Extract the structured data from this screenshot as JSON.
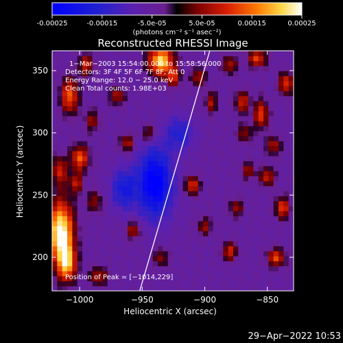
{
  "chart_data": {
    "type": "heatmap",
    "title": "Reconstructed RHESSI Image",
    "xlabel": "Heliocentric X (arcsec)",
    "ylabel": "Heliocentric Y (arcsec)",
    "xlim": [
      -1022,
      -829
    ],
    "ylim": [
      173,
      366
    ],
    "x_ticks": [
      -1000,
      -950,
      -900,
      -850
    ],
    "x_tick_labels": [
      "−1000",
      "−950",
      "−900",
      "−850"
    ],
    "y_ticks": [
      200,
      250,
      300,
      350
    ],
    "y_tick_labels": [
      "200",
      "250",
      "300",
      "350"
    ],
    "colorbar": {
      "range": [
        -0.00025,
        0.00025
      ],
      "ticks": [
        -0.00025,
        -0.00015,
        -5e-05,
        5e-05,
        0.00015,
        0.00025
      ],
      "tick_labels": [
        "-0.00025",
        "-0.00015",
        "-5.0e-05",
        "5.0e-05",
        "0.00015",
        "0.00025"
      ],
      "units_label": "(photons cm⁻² s⁻¹ asec⁻²)"
    },
    "annotations": [
      "1−Mar−2003 15:54:00.000 to 15:58:56.000",
      "Detectors: 3F 4F 5F 6F 7F 8F, Att 0",
      "Energy Range: 12.0 − 25.0 keV",
      "Clean    Total counts: 1.98E+03"
    ],
    "peak_label": "Position of Peak = [−1014,229]",
    "limb_line": [
      [
        -952,
        173
      ],
      [
        -915,
        300
      ],
      [
        -896,
        366
      ]
    ],
    "features": [
      {
        "x": -1015,
        "y": 220,
        "sx": 7,
        "sy": 18,
        "amp": 1.5
      },
      {
        "x": -1010,
        "y": 195,
        "sx": 5,
        "sy": 10,
        "amp": 1.0
      },
      {
        "x": -1016,
        "y": 270,
        "sx": 4,
        "sy": 8,
        "amp": 0.7
      },
      {
        "x": -1000,
        "y": 280,
        "sx": 5,
        "sy": 7,
        "amp": 0.9
      },
      {
        "x": -1003,
        "y": 260,
        "sx": 4,
        "sy": 6,
        "amp": 0.6
      },
      {
        "x": -1008,
        "y": 330,
        "sx": 5,
        "sy": 10,
        "amp": 0.9
      },
      {
        "x": -995,
        "y": 355,
        "sx": 4,
        "sy": 6,
        "amp": 0.7
      },
      {
        "x": -990,
        "y": 310,
        "sx": 4,
        "sy": 6,
        "amp": 0.5
      },
      {
        "x": -988,
        "y": 245,
        "sx": 4,
        "sy": 6,
        "amp": 0.5
      },
      {
        "x": -985,
        "y": 185,
        "sx": 5,
        "sy": 5,
        "amp": 0.6
      },
      {
        "x": -970,
        "y": 330,
        "sx": 4,
        "sy": 5,
        "amp": 0.6
      },
      {
        "x": -962,
        "y": 292,
        "sx": 4,
        "sy": 5,
        "amp": 0.6
      },
      {
        "x": -957,
        "y": 222,
        "sx": 4,
        "sy": 5,
        "amp": 0.6
      },
      {
        "x": -945,
        "y": 300,
        "sx": 4,
        "sy": 5,
        "amp": 0.5
      },
      {
        "x": -935,
        "y": 358,
        "sx": 7,
        "sy": 8,
        "amp": 1.3
      },
      {
        "x": -925,
        "y": 345,
        "sx": 4,
        "sy": 5,
        "amp": 0.7
      },
      {
        "x": -935,
        "y": 200,
        "sx": 4,
        "sy": 5,
        "amp": 0.5
      },
      {
        "x": -905,
        "y": 345,
        "sx": 4,
        "sy": 5,
        "amp": 0.6
      },
      {
        "x": -910,
        "y": 258,
        "sx": 4,
        "sy": 5,
        "amp": 0.8
      },
      {
        "x": -900,
        "y": 225,
        "sx": 4,
        "sy": 5,
        "amp": 0.5
      },
      {
        "x": -895,
        "y": 325,
        "sx": 3,
        "sy": 6,
        "amp": 0.6
      },
      {
        "x": -880,
        "y": 355,
        "sx": 4,
        "sy": 5,
        "amp": 0.6
      },
      {
        "x": -870,
        "y": 325,
        "sx": 4,
        "sy": 6,
        "amp": 0.7
      },
      {
        "x": -868,
        "y": 300,
        "sx": 4,
        "sy": 5,
        "amp": 0.5
      },
      {
        "x": -865,
        "y": 270,
        "sx": 4,
        "sy": 5,
        "amp": 0.5
      },
      {
        "x": -858,
        "y": 360,
        "sx": 5,
        "sy": 5,
        "amp": 0.8
      },
      {
        "x": -855,
        "y": 315,
        "sx": 4,
        "sy": 8,
        "amp": 0.8
      },
      {
        "x": -850,
        "y": 265,
        "sx": 4,
        "sy": 5,
        "amp": 0.7
      },
      {
        "x": -845,
        "y": 290,
        "sx": 4,
        "sy": 5,
        "amp": 0.6
      },
      {
        "x": -843,
        "y": 200,
        "sx": 5,
        "sy": 5,
        "amp": 0.8
      },
      {
        "x": -838,
        "y": 240,
        "sx": 4,
        "sy": 6,
        "amp": 0.8
      },
      {
        "x": -835,
        "y": 340,
        "sx": 4,
        "sy": 6,
        "amp": 0.8
      },
      {
        "x": -880,
        "y": 205,
        "sx": 4,
        "sy": 5,
        "amp": 0.7
      },
      {
        "x": -875,
        "y": 240,
        "sx": 4,
        "sy": 5,
        "amp": 0.5
      },
      {
        "x": -940,
        "y": 260,
        "sx": 10,
        "sy": 20,
        "amp": -1.0
      },
      {
        "x": -965,
        "y": 255,
        "sx": 7,
        "sy": 12,
        "amp": -0.6
      },
      {
        "x": -920,
        "y": 300,
        "sx": 8,
        "sy": 10,
        "amp": -0.5
      }
    ]
  },
  "footer": {
    "timestamp": "29−Apr−2022 10:53"
  }
}
